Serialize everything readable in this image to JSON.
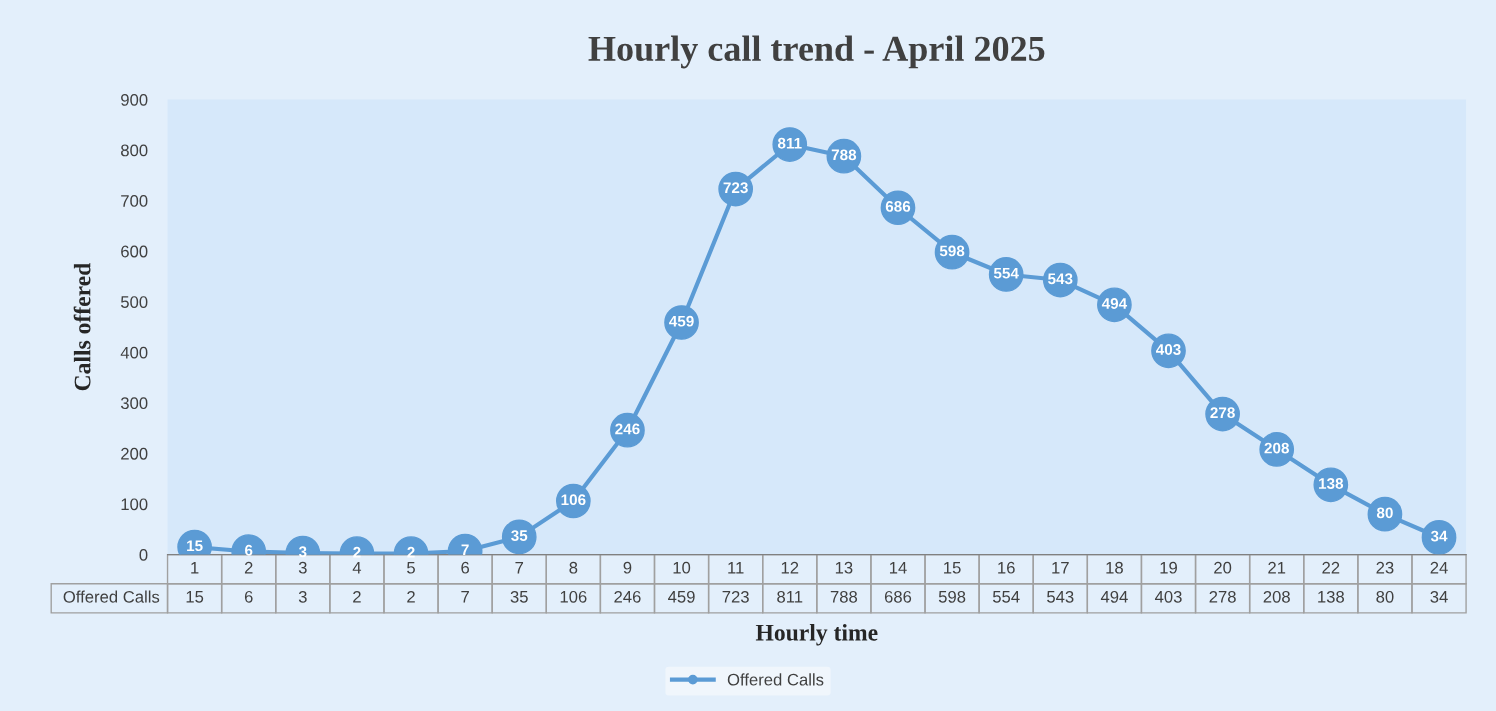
{
  "chart_data": {
    "type": "line",
    "title": "Hourly call trend - April 2025",
    "xlabel": "Hourly time",
    "ylabel": "Calls offered",
    "categories": [
      "1",
      "2",
      "3",
      "4",
      "5",
      "6",
      "7",
      "8",
      "9",
      "10",
      "11",
      "12",
      "13",
      "14",
      "15",
      "16",
      "17",
      "18",
      "19",
      "20",
      "21",
      "22",
      "23",
      "24"
    ],
    "series": [
      {
        "name": "Offered Calls",
        "color": "#5b9bd5",
        "values": [
          15,
          6,
          3,
          2,
          2,
          7,
          35,
          106,
          246,
          459,
          723,
          811,
          788,
          686,
          598,
          554,
          543,
          494,
          403,
          278,
          208,
          138,
          80,
          34
        ]
      }
    ],
    "annotations": [
      {
        "text": "15",
        "x": "1",
        "y": 15
      },
      {
        "text": "6",
        "x": "2",
        "y": 6
      },
      {
        "text": "3",
        "x": "3",
        "y": 3
      },
      {
        "text": "2",
        "x": "4",
        "y": 2
      },
      {
        "text": "2",
        "x": "5",
        "y": 2
      },
      {
        "text": "7",
        "x": "6",
        "y": 7
      },
      {
        "text": "35",
        "x": "7",
        "y": 35
      },
      {
        "text": "106",
        "x": "8",
        "y": 106
      },
      {
        "text": "246",
        "x": "9",
        "y": 246
      },
      {
        "text": "459",
        "x": "10",
        "y": 459
      },
      {
        "text": "723",
        "x": "11",
        "y": 723
      },
      {
        "text": "811",
        "x": "12",
        "y": 811
      },
      {
        "text": "788",
        "x": "13",
        "y": 788
      },
      {
        "text": "686",
        "x": "14",
        "y": 686
      },
      {
        "text": "598",
        "x": "15",
        "y": 598
      },
      {
        "text": "554",
        "x": "16",
        "y": 554
      },
      {
        "text": "543",
        "x": "17",
        "y": 543
      },
      {
        "text": "494",
        "x": "18",
        "y": 494
      },
      {
        "text": "403",
        "x": "19",
        "y": 403
      },
      {
        "text": "278",
        "x": "20",
        "y": 278
      },
      {
        "text": "208",
        "x": "21",
        "y": 208
      },
      {
        "text": "138",
        "x": "22",
        "y": 138
      },
      {
        "text": "80",
        "x": "23",
        "y": 80
      },
      {
        "text": "34",
        "x": "24",
        "y": 34
      }
    ],
    "ylim": [
      0,
      900
    ],
    "yticks": [
      0,
      100,
      200,
      300,
      400,
      500,
      600,
      700,
      800,
      900
    ],
    "grid": false,
    "legend": "bottom",
    "marker": "circle",
    "line_style": "solid",
    "data_labels": true
  }
}
